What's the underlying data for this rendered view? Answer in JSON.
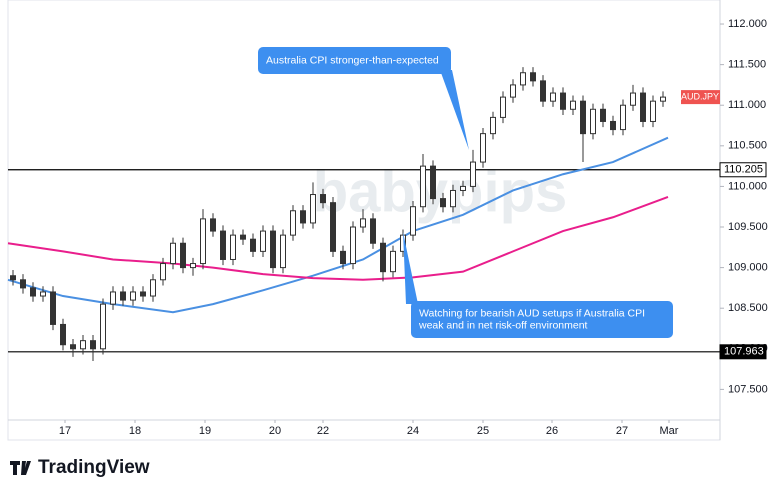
{
  "chart_data": {
    "type": "candlestick",
    "watermark": "babypips",
    "x": [
      0,
      1,
      2,
      3,
      4,
      5,
      6,
      7,
      8,
      9,
      10,
      11,
      12,
      13,
      14,
      15,
      16,
      17,
      18,
      19,
      20,
      21,
      22,
      23,
      24,
      25,
      26,
      27,
      28,
      29,
      30,
      31,
      32,
      33,
      34,
      35,
      36,
      37,
      38,
      39,
      40,
      41,
      42,
      43,
      44,
      45,
      46,
      47,
      48,
      49,
      50,
      51,
      52,
      53,
      54,
      55,
      56,
      57,
      58,
      59,
      60,
      61,
      62,
      63,
      64,
      65
    ],
    "open": [
      108.9,
      108.85,
      108.75,
      108.65,
      108.7,
      108.3,
      108.05,
      108.0,
      108.1,
      108.0,
      108.55,
      108.7,
      108.6,
      108.7,
      108.65,
      108.85,
      109.05,
      109.3,
      109.0,
      109.05,
      109.6,
      109.45,
      109.1,
      109.4,
      109.35,
      109.2,
      109.45,
      109.0,
      109.4,
      109.7,
      109.55,
      109.9,
      109.8,
      109.2,
      109.05,
      109.5,
      109.6,
      109.3,
      108.95,
      109.2,
      109.4,
      109.75,
      110.25,
      109.85,
      109.75,
      109.95,
      110.0,
      110.3,
      110.65,
      110.85,
      111.1,
      111.25,
      111.4,
      111.3,
      111.05,
      111.15,
      110.95,
      111.05,
      110.65,
      110.95,
      110.8,
      110.7,
      111.0,
      111.15,
      110.8,
      111.05
    ],
    "high": [
      108.97,
      108.92,
      108.82,
      108.77,
      108.77,
      108.37,
      108.12,
      108.17,
      108.17,
      108.62,
      108.77,
      108.77,
      108.77,
      108.77,
      108.92,
      109.12,
      109.37,
      109.37,
      109.12,
      109.72,
      109.67,
      109.52,
      109.47,
      109.47,
      109.42,
      109.52,
      109.52,
      109.47,
      109.77,
      109.77,
      110.05,
      109.97,
      109.87,
      109.27,
      109.57,
      109.72,
      109.67,
      109.37,
      109.27,
      109.47,
      109.82,
      110.4,
      110.32,
      109.92,
      110.02,
      110.07,
      110.45,
      110.72,
      110.92,
      111.17,
      111.32,
      111.47,
      111.47,
      111.37,
      111.22,
      111.22,
      111.12,
      111.12,
      111.02,
      111.02,
      110.87,
      111.07,
      111.25,
      111.22,
      111.12,
      111.17
    ],
    "low": [
      108.78,
      108.68,
      108.58,
      108.58,
      108.23,
      107.98,
      107.9,
      107.93,
      107.85,
      107.93,
      108.48,
      108.53,
      108.53,
      108.58,
      108.58,
      108.78,
      108.98,
      108.93,
      108.9,
      108.98,
      109.38,
      109.03,
      109.03,
      109.28,
      109.13,
      109.13,
      108.93,
      108.93,
      109.33,
      109.48,
      109.48,
      109.73,
      109.13,
      108.98,
      108.98,
      109.43,
      109.23,
      108.83,
      108.88,
      109.13,
      109.33,
      109.68,
      109.78,
      109.68,
      109.68,
      109.88,
      109.93,
      110.23,
      110.58,
      110.78,
      111.03,
      111.18,
      111.23,
      110.98,
      110.98,
      110.88,
      110.88,
      110.3,
      110.58,
      110.73,
      110.63,
      110.63,
      110.93,
      110.73,
      110.73,
      110.98
    ],
    "close": [
      108.85,
      108.75,
      108.65,
      108.7,
      108.3,
      108.05,
      108.0,
      108.1,
      108.0,
      108.55,
      108.7,
      108.6,
      108.7,
      108.65,
      108.85,
      109.05,
      109.3,
      109.0,
      109.05,
      109.6,
      109.45,
      109.1,
      109.4,
      109.35,
      109.2,
      109.45,
      109.0,
      109.4,
      109.7,
      109.55,
      109.9,
      109.8,
      109.2,
      109.05,
      109.5,
      109.6,
      109.3,
      108.95,
      109.2,
      109.4,
      109.75,
      110.25,
      109.85,
      109.75,
      109.95,
      110.0,
      110.3,
      110.65,
      110.85,
      111.1,
      111.25,
      111.4,
      111.3,
      111.05,
      111.15,
      110.95,
      111.05,
      110.65,
      110.95,
      110.8,
      110.7,
      111.0,
      111.15,
      110.8,
      111.05,
      111.1
    ],
    "up_color": "#ffffff",
    "down_color": "#333333",
    "wick_color": "#333333",
    "symbol": "AUD.JPY",
    "symbol_color": "#ef5350",
    "lines": [
      {
        "color": "#4a90e2",
        "x": [
          -0.5,
          5,
          10,
          16,
          20,
          25,
          30,
          35,
          40,
          45,
          50,
          55,
          60,
          65.5
        ],
        "values": [
          108.85,
          108.65,
          108.55,
          108.45,
          108.55,
          108.72,
          108.9,
          109.1,
          109.45,
          109.65,
          109.95,
          110.15,
          110.3,
          110.6
        ]
      },
      {
        "color": "#e91e8c",
        "x": [
          -0.5,
          5,
          10,
          16,
          20,
          25,
          30,
          35,
          40,
          45,
          50,
          55,
          60,
          65.5
        ],
        "values": [
          109.3,
          109.2,
          109.1,
          109.05,
          109.0,
          108.92,
          108.87,
          108.85,
          108.88,
          108.95,
          109.2,
          109.45,
          109.62,
          109.87
        ]
      }
    ],
    "levels": [
      {
        "value": 110.205,
        "label": "110.205"
      },
      {
        "value": 107.963,
        "label": "107.963"
      }
    ],
    "annotations": [
      {
        "lines": [
          "Australia CPI stronger-than-expected"
        ]
      },
      {
        "lines": [
          "Watching for bearish AUD setups if Australia CPI",
          "weak and in net risk-off environment"
        ]
      }
    ],
    "xlim": [
      -0.5,
      70.7
    ],
    "xticks": [
      {
        "value": 5.2,
        "label": "17"
      },
      {
        "value": 12.2,
        "label": "18"
      },
      {
        "value": 19.2,
        "label": "19"
      },
      {
        "value": 26.2,
        "label": "20"
      },
      {
        "value": 31,
        "label": "22"
      },
      {
        "value": 40,
        "label": "24"
      },
      {
        "value": 47,
        "label": "25"
      },
      {
        "value": 53.9,
        "label": "26"
      },
      {
        "value": 60.9,
        "label": "27"
      },
      {
        "value": 65.6,
        "label": "Mar"
      }
    ],
    "ylim": [
      107.123,
      112.296
    ],
    "yticks": [
      {
        "value": 107.5,
        "label": "107.500"
      },
      {
        "value": 108,
        "label": "108.000"
      },
      {
        "value": 108.5,
        "label": "108.500"
      },
      {
        "value": 109,
        "label": "109.000"
      },
      {
        "value": 109.5,
        "label": "109.500"
      },
      {
        "value": 110,
        "label": "110.000"
      },
      {
        "value": 110.5,
        "label": "110.500"
      },
      {
        "value": 111,
        "label": "111.000"
      },
      {
        "value": 111.5,
        "label": "111.500"
      },
      {
        "value": 112,
        "label": "112.000"
      }
    ]
  },
  "logo": "TradingView"
}
